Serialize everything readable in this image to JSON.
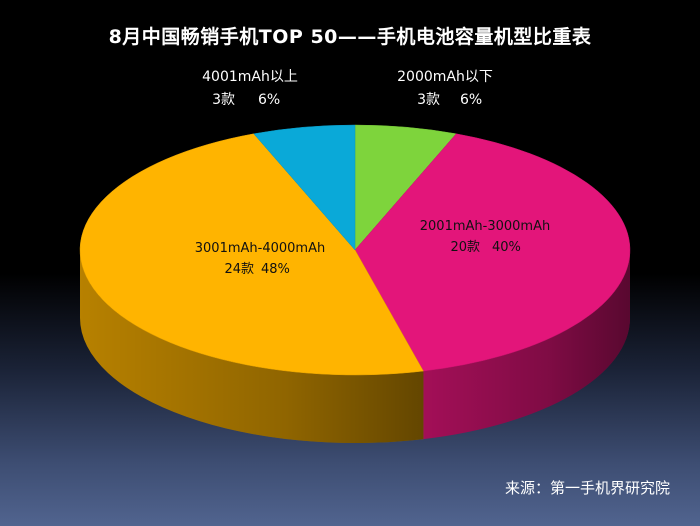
{
  "chart_data": {
    "type": "pie",
    "title": "8月中国畅销手机TOP 50——手机电池容量机型比重表",
    "slices": [
      {
        "name": "2000mAh以下",
        "count_label": "3款",
        "pct_label": "6%",
        "count": 3,
        "percent": 6,
        "color": "#7ed43c"
      },
      {
        "name": "2001mAh-3000mAh",
        "count_label": "20款",
        "pct_label": "40%",
        "count": 20,
        "percent": 40,
        "color": "#e3157a"
      },
      {
        "name": "3001mAh-4000mAh",
        "count_label": "24款",
        "pct_label": "48%",
        "count": 24,
        "percent": 48,
        "color": "#ffb400"
      },
      {
        "name": "4001mAh以上",
        "count_label": "3款",
        "pct_label": "6%",
        "count": 3,
        "percent": 6,
        "color": "#0aa9d8"
      }
    ]
  },
  "footer": {
    "source": "来源：第一手机界研究院"
  }
}
